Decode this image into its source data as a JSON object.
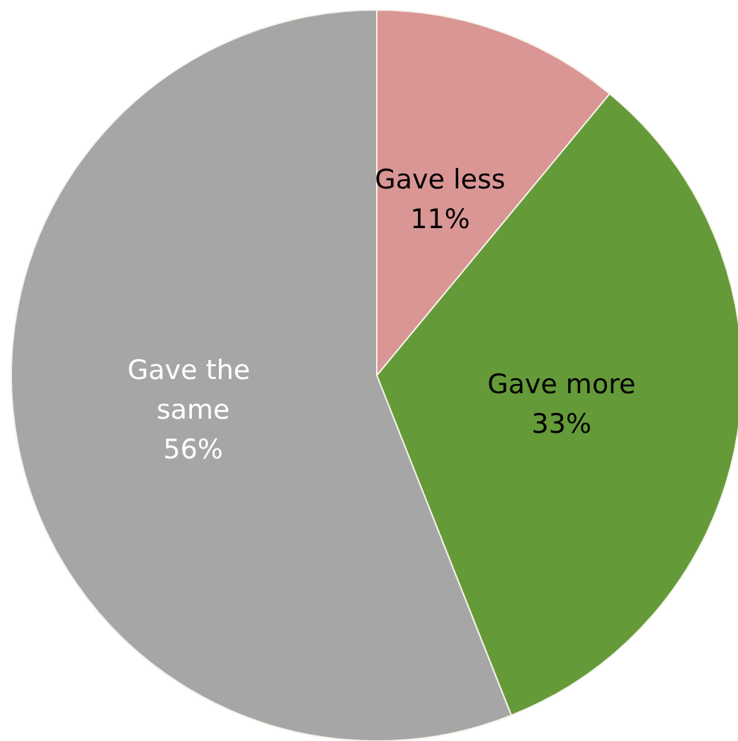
{
  "chart_data": {
    "type": "pie",
    "categories": [
      "Gave less",
      "Gave more",
      "Gave the same"
    ],
    "values": [
      11,
      33,
      56
    ],
    "colors": [
      "#d99694",
      "#659a39",
      "#a6a6a6"
    ],
    "value_labels": [
      "11%",
      "33%",
      "56%"
    ],
    "legend": false
  }
}
